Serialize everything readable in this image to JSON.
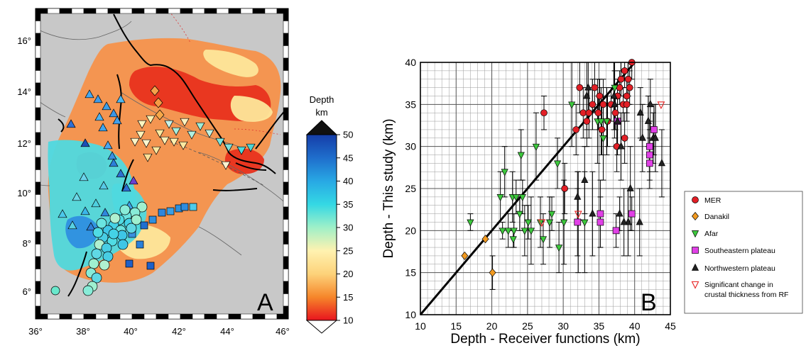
{
  "chart_data": [
    {
      "type": "map",
      "panel_label": "A",
      "x_ticks": [
        "36°",
        "38°",
        "40°",
        "42°",
        "44°",
        "46°"
      ],
      "y_ticks": [
        "6°",
        "8°",
        "10°",
        "12°",
        "14°",
        "16°"
      ],
      "colorbar": {
        "title_line1": "Depth",
        "title_line2": "km",
        "ticks": [
          "10",
          "15",
          "20",
          "25",
          "30",
          "35",
          "40",
          "45",
          "50"
        ],
        "range": [
          10,
          50
        ],
        "colors": [
          "#e8141e",
          "#f6862a",
          "#fdd27a",
          "#fff2b0",
          "#9ff0c8",
          "#34d8e4",
          "#28a8e4",
          "#1f6ecc",
          "#153da8"
        ]
      },
      "map_colors": {
        "land": "#c8c8c8",
        "red": "#e8321e",
        "orange": "#f7924b",
        "yellow": "#fde69a",
        "cyan": "#4fd9df",
        "blue": "#2f8fe0"
      }
    },
    {
      "type": "scatter",
      "panel_label": "B",
      "xlabel": "Depth - Receiver functions (km)",
      "ylabel": "Depth - This study (km)",
      "xlim": [
        10,
        45
      ],
      "ylim": [
        10,
        40
      ],
      "x_ticks": [
        "10",
        "15",
        "20",
        "25",
        "30",
        "35",
        "40",
        "45"
      ],
      "y_ticks": [
        "10",
        "15",
        "20",
        "25",
        "30",
        "35",
        "40"
      ],
      "grid": true,
      "reference_line": {
        "x": [
          10,
          40
        ],
        "y": [
          10,
          40
        ]
      },
      "series": [
        {
          "name": "MER",
          "marker": "circle",
          "color": "#e21f26",
          "points": [
            [
              27.3,
              34,
              2
            ],
            [
              30.2,
              25,
              3
            ],
            [
              31.8,
              32,
              3
            ],
            [
              32.3,
              37,
              3
            ],
            [
              32.8,
              34,
              3
            ],
            [
              33.3,
              33,
              3
            ],
            [
              33.6,
              34,
              3
            ],
            [
              34.1,
              35,
              3
            ],
            [
              34.4,
              37,
              3
            ],
            [
              34.9,
              34,
              2
            ],
            [
              35.1,
              36,
              2
            ],
            [
              35.6,
              35,
              3
            ],
            [
              35.4,
              32,
              3
            ],
            [
              36.2,
              33,
              3
            ],
            [
              36.7,
              35,
              2
            ],
            [
              37.3,
              34,
              2
            ],
            [
              37.6,
              36,
              2
            ],
            [
              37.9,
              37,
              2
            ],
            [
              38.1,
              38,
              2
            ],
            [
              38.4,
              35,
              2
            ],
            [
              38.6,
              39,
              2
            ],
            [
              38.9,
              36,
              2
            ],
            [
              39.1,
              38,
              2
            ],
            [
              39.3,
              37,
              2
            ],
            [
              39.6,
              40,
              2
            ],
            [
              38.6,
              31,
              3
            ],
            [
              37.5,
              30,
              3
            ],
            [
              38.9,
              35,
              2
            ]
          ]
        },
        {
          "name": "Danakil",
          "marker": "diamond",
          "color": "#f29a20",
          "points": [
            [
              16.2,
              17,
              0
            ],
            [
              19.1,
              19,
              0
            ],
            [
              20.1,
              15,
              2
            ]
          ]
        },
        {
          "name": "Afar",
          "marker": "triangle-down",
          "color": "#3dc83d",
          "points": [
            [
              17.0,
              21,
              1
            ],
            [
              21.2,
              24,
              3
            ],
            [
              21.8,
              27,
              3
            ],
            [
              21.5,
              20,
              1
            ],
            [
              22.3,
              20,
              2
            ],
            [
              23.0,
              19,
              1
            ],
            [
              23.1,
              20,
              2
            ],
            [
              22.9,
              24,
              3
            ],
            [
              23.4,
              24,
              2
            ],
            [
              23.9,
              22,
              2
            ],
            [
              24.1,
              29,
              3
            ],
            [
              24.3,
              24,
              2
            ],
            [
              24.6,
              20,
              3
            ],
            [
              25.1,
              21,
              2
            ],
            [
              25.5,
              20,
              4
            ],
            [
              26.2,
              30,
              4
            ],
            [
              26.8,
              21,
              3
            ],
            [
              27.2,
              19,
              3
            ],
            [
              28.1,
              21,
              3
            ],
            [
              28.4,
              22,
              2
            ],
            [
              29.2,
              28,
              3
            ],
            [
              29.4,
              18,
              3
            ],
            [
              30.1,
              21,
              5
            ],
            [
              31.2,
              35,
              5
            ],
            [
              32.1,
              21,
              6
            ],
            [
              33.0,
              21,
              6
            ],
            [
              34.8,
              33,
              5
            ],
            [
              35.3,
              33,
              4
            ],
            [
              35.6,
              31,
              5
            ],
            [
              36.1,
              33,
              4
            ],
            [
              37.2,
              37,
              3
            ]
          ]
        },
        {
          "name": "Southeastern plateau",
          "marker": "square",
          "color": "#e040e6",
          "points": [
            [
              32.0,
              21,
              4
            ],
            [
              35.2,
              22,
              4
            ],
            [
              35.2,
              21,
              3
            ],
            [
              37.4,
              20,
              2
            ],
            [
              39.6,
              22,
              2
            ],
            [
              42.1,
              30,
              3
            ],
            [
              42.1,
              29,
              3
            ],
            [
              42.1,
              28,
              3
            ],
            [
              42.7,
              32,
              3
            ],
            [
              37.6,
              33,
              4
            ]
          ]
        },
        {
          "name": "Northwestern plateau",
          "marker": "triangle-up",
          "color": "#222222",
          "points": [
            [
              32.0,
              24,
              3
            ],
            [
              33.0,
              26,
              4
            ],
            [
              33.3,
              36,
              4
            ],
            [
              33.5,
              37,
              3
            ],
            [
              34.1,
              22,
              5
            ],
            [
              37.1,
              36,
              4
            ],
            [
              37.2,
              35,
              4
            ],
            [
              37.6,
              33,
              3
            ],
            [
              38.1,
              30,
              4
            ],
            [
              39.1,
              21,
              4
            ],
            [
              39.4,
              25,
              5
            ],
            [
              40.7,
              21,
              4
            ],
            [
              40.8,
              34,
              3
            ],
            [
              41.1,
              31,
              4
            ],
            [
              41.9,
              33,
              3
            ],
            [
              42.2,
              35,
              3
            ],
            [
              42.6,
              31,
              3
            ],
            [
              42.9,
              31,
              4
            ],
            [
              43.8,
              28,
              4
            ],
            [
              38.5,
              21,
              4
            ],
            [
              37.9,
              22,
              2
            ]
          ]
        },
        {
          "name": "Significant change in crustal thickness from RF",
          "legend_line2": "crustal thickness from RF",
          "legend_line1": "Significant change in",
          "marker": "triangle-down-open",
          "color": "#e82424",
          "points": [
            [
              27.0,
              21,
              0
            ],
            [
              32.1,
              22,
              0
            ],
            [
              43.7,
              35,
              0
            ]
          ]
        }
      ],
      "legend": {
        "placement": "right",
        "items": [
          {
            "label": "MER"
          },
          {
            "label": "Danakil"
          },
          {
            "label": "Afar"
          },
          {
            "label": "Southeastern plateau"
          },
          {
            "label": "Northwestern plateau"
          },
          {
            "label": "Significant change in",
            "label2": "crustal thickness from RF"
          }
        ]
      }
    }
  ]
}
